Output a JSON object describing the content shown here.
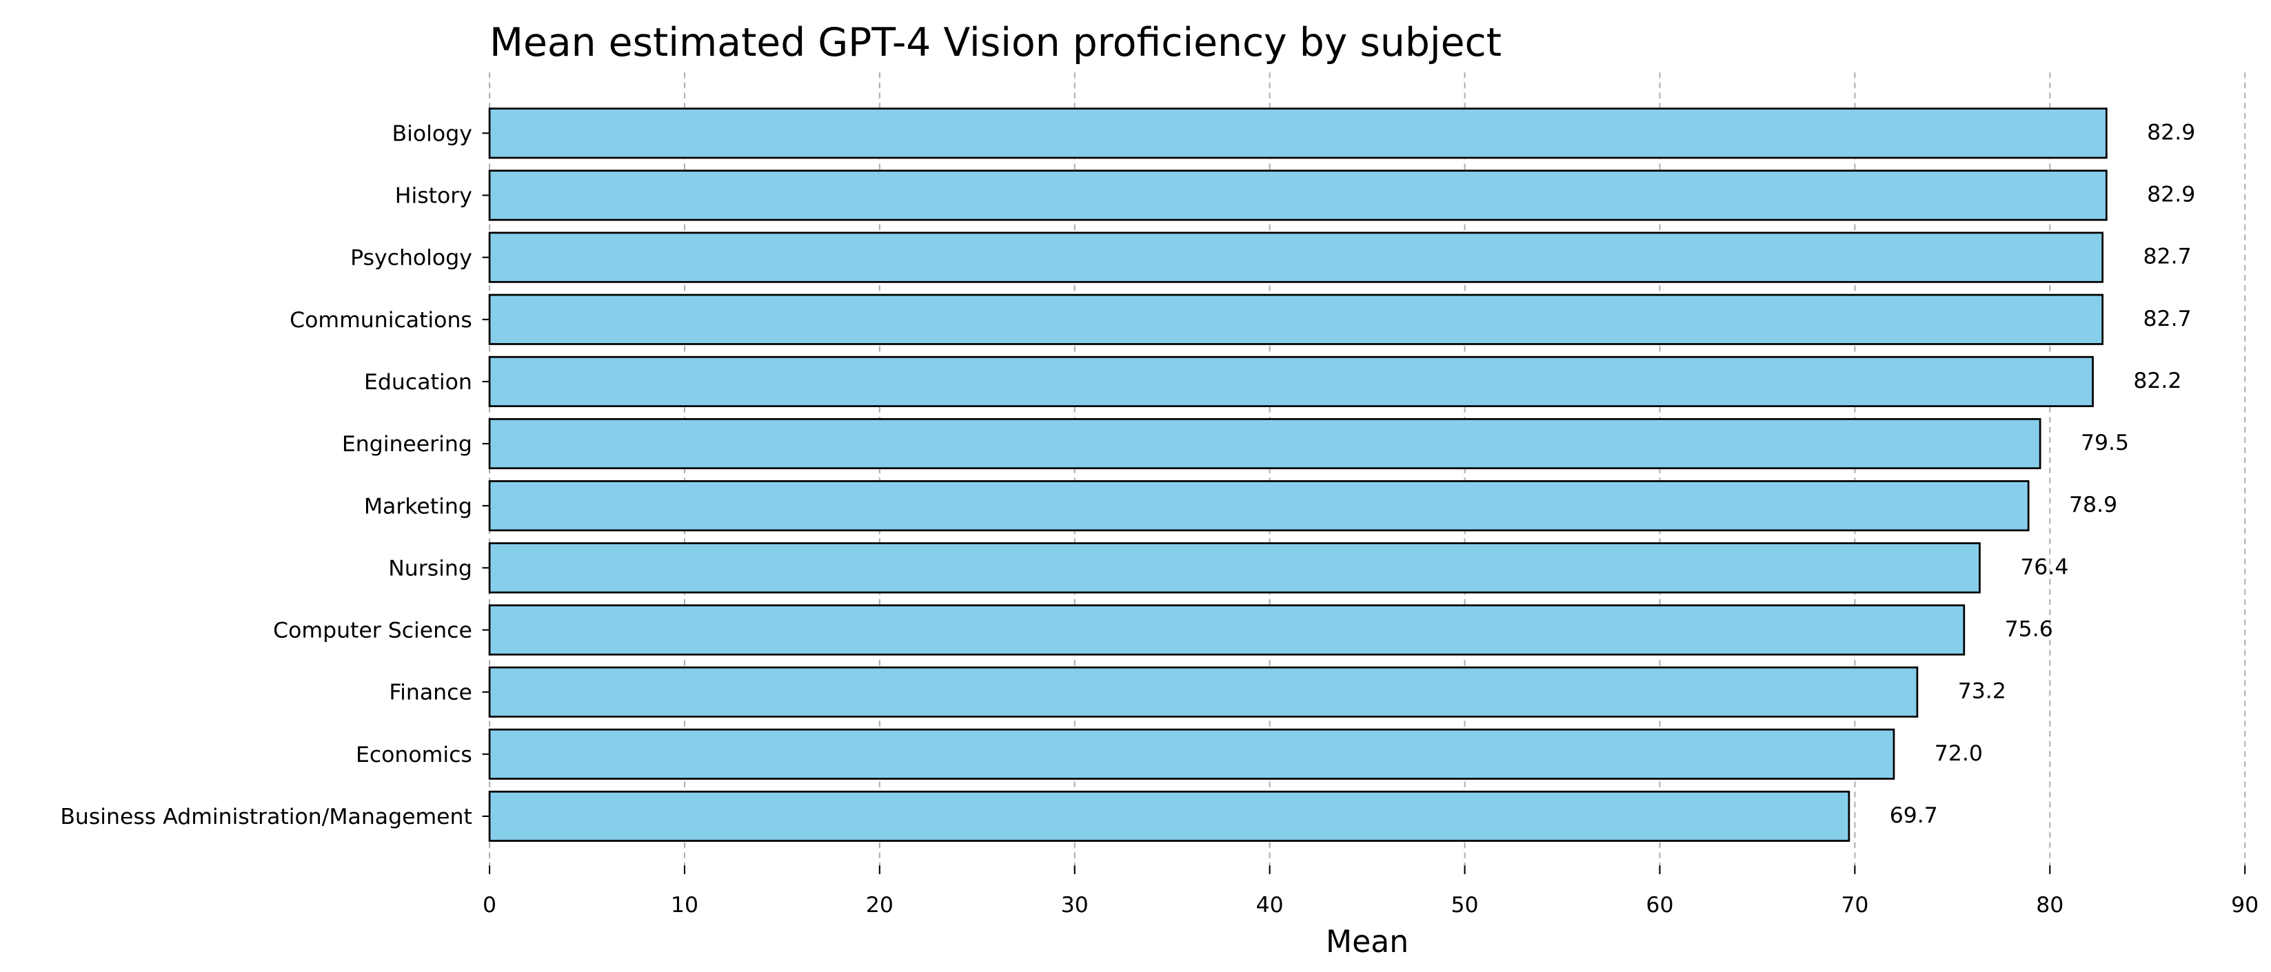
{
  "chart_data": {
    "type": "barh",
    "title": "Mean estimated GPT-4 Vision proficiency by subject",
    "xlabel": "Mean",
    "categories": [
      "Biology",
      "History",
      "Psychology",
      "Communications",
      "Education",
      "Engineering",
      "Marketing",
      "Nursing",
      "Computer Science",
      "Finance",
      "Economics",
      "Business Administration/Management"
    ],
    "values": [
      82.9,
      82.9,
      82.7,
      82.7,
      82.2,
      79.5,
      78.9,
      76.4,
      75.6,
      73.2,
      72.0,
      69.7
    ],
    "value_labels": [
      "82.9",
      "82.9",
      "82.7",
      "82.7",
      "82.2",
      "79.5",
      "78.9",
      "76.4",
      "75.6",
      "73.2",
      "72.0",
      "69.7"
    ],
    "color": "#87ceeb",
    "xlim": [
      0,
      90
    ],
    "xticks": [
      0,
      10,
      20,
      30,
      40,
      50,
      60,
      70,
      80,
      90
    ],
    "grid": true
  }
}
